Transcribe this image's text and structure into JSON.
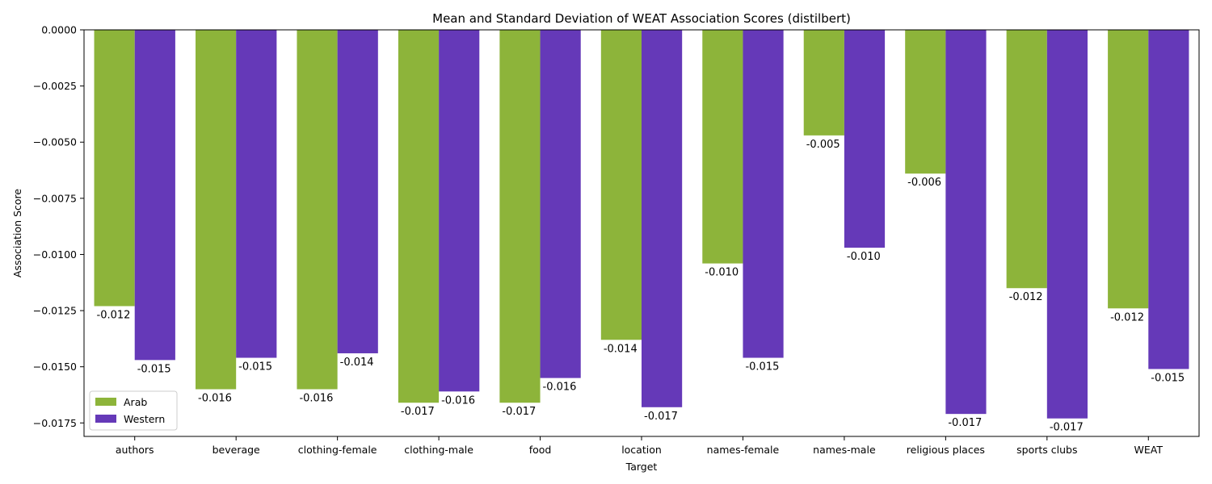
{
  "chart_data": {
    "type": "bar",
    "title": "Mean and Standard Deviation of WEAT Association Scores (distilbert)",
    "xlabel": "Target",
    "ylabel": "Association Score",
    "ylim": [
      -0.0181,
      0.0
    ],
    "yticks": [
      "0.0000",
      "−0.0025",
      "−0.0050",
      "−0.0075",
      "−0.0100",
      "−0.0125",
      "−0.0150",
      "−0.0175"
    ],
    "ytick_values": [
      0.0,
      -0.0025,
      -0.005,
      -0.0075,
      -0.01,
      -0.0125,
      -0.015,
      -0.0175
    ],
    "categories": [
      "authors",
      "beverage",
      "clothing-female",
      "clothing-male",
      "food",
      "location",
      "names-female",
      "names-male",
      "religious places",
      "sports clubs",
      "WEAT"
    ],
    "series": [
      {
        "name": "Arab",
        "color": "#8db43a",
        "values": [
          -0.0123,
          -0.016,
          -0.016,
          -0.0166,
          -0.0166,
          -0.0138,
          -0.0104,
          -0.0047,
          -0.0064,
          -0.0115,
          -0.0124
        ],
        "labels": [
          "-0.012",
          "-0.016",
          "-0.016",
          "-0.017",
          "-0.017",
          "-0.014",
          "-0.010",
          "-0.005",
          "-0.006",
          "-0.012",
          "-0.012"
        ]
      },
      {
        "name": "Western",
        "color": "#6539b8",
        "values": [
          -0.0147,
          -0.0146,
          -0.0144,
          -0.0161,
          -0.0155,
          -0.0168,
          -0.0146,
          -0.0097,
          -0.0171,
          -0.0173,
          -0.0151
        ],
        "labels": [
          "-0.015",
          "-0.015",
          "-0.014",
          "-0.016",
          "-0.016",
          "-0.017",
          "-0.015",
          "-0.010",
          "-0.017",
          "-0.017",
          "-0.015"
        ]
      }
    ],
    "legend": "lower-left",
    "grid": false
  }
}
